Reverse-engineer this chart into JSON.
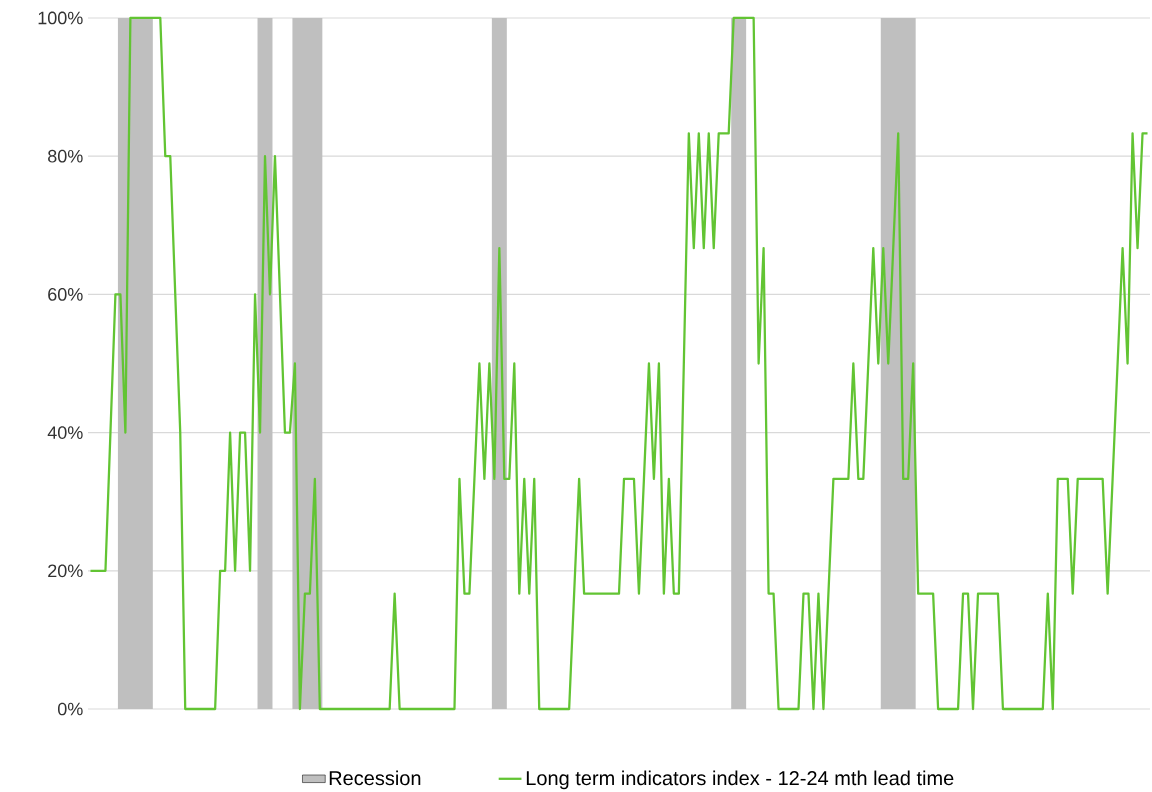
{
  "chart_data": {
    "type": "line",
    "categories": [
      null,
      null,
      null,
      null,
      null,
      null,
      null,
      null,
      null,
      null,
      null,
      null,
      null,
      null,
      null,
      null,
      null,
      null,
      null,
      null,
      null,
      null,
      null,
      null,
      null,
      null,
      null,
      null,
      null,
      null,
      null,
      null,
      null,
      null,
      null,
      null,
      null,
      null,
      null,
      null,
      null,
      null,
      null,
      null,
      null,
      null,
      null,
      null,
      null,
      null,
      null,
      null,
      null,
      null,
      null,
      null,
      null,
      null,
      null,
      null,
      null,
      null,
      null,
      null,
      null,
      null,
      null,
      null,
      null,
      null,
      null,
      null,
      null,
      null,
      null,
      null,
      null,
      null,
      null,
      null,
      null,
      null,
      null,
      null,
      null,
      null,
      null,
      null,
      null,
      null,
      null,
      null,
      null,
      null,
      null,
      null,
      null,
      null,
      null,
      null,
      null,
      null,
      null,
      null,
      null,
      null,
      null,
      null,
      null,
      null,
      null,
      null,
      null,
      null,
      null,
      null,
      null,
      null,
      null,
      null,
      null,
      null,
      null,
      null,
      null,
      null,
      null,
      null,
      null,
      null,
      null,
      null,
      null,
      null,
      null,
      null,
      null,
      null,
      null,
      null,
      null,
      null,
      null,
      null,
      null,
      null,
      null,
      null,
      null,
      null,
      null,
      null,
      null,
      null,
      null,
      null,
      null,
      null,
      null,
      null,
      null,
      null,
      null,
      null,
      null,
      null,
      null,
      null,
      null,
      null,
      null,
      null,
      null,
      null,
      null,
      null,
      null,
      null,
      null,
      null,
      null,
      null,
      null,
      null,
      null,
      null,
      null,
      null,
      null,
      null,
      null,
      null,
      null,
      null,
      null,
      null,
      null,
      null,
      null,
      null,
      null,
      null,
      null,
      null,
      null,
      null,
      null,
      null,
      null,
      null,
      null,
      null,
      null
    ],
    "series": [
      {
        "name": "Recession",
        "type": "area",
        "color": "#bfbfbf",
        "values": [
          null,
          null,
          null,
          null,
          null,
          null,
          100,
          100,
          100,
          100,
          100,
          100,
          100,
          null,
          null,
          null,
          null,
          null,
          null,
          null,
          null,
          null,
          null,
          null,
          null,
          null,
          null,
          null,
          null,
          null,
          null,
          null,
          null,
          null,
          100,
          100,
          100,
          null,
          null,
          null,
          null,
          100,
          100,
          100,
          100,
          100,
          100,
          null,
          null,
          null,
          null,
          null,
          null,
          null,
          null,
          null,
          null,
          null,
          null,
          null,
          null,
          null,
          null,
          null,
          null,
          null,
          null,
          null,
          null,
          null,
          null,
          null,
          null,
          null,
          null,
          null,
          null,
          null,
          null,
          null,
          null,
          100,
          100,
          100,
          null,
          null,
          null,
          null,
          null,
          null,
          null,
          null,
          null,
          null,
          null,
          null,
          null,
          null,
          null,
          null,
          null,
          null,
          null,
          null,
          null,
          null,
          null,
          null,
          null,
          null,
          null,
          null,
          null,
          null,
          null,
          null,
          null,
          null,
          null,
          null,
          null,
          null,
          null,
          null,
          null,
          null,
          null,
          null,
          null,
          100,
          100,
          100,
          null,
          null,
          null,
          null,
          null,
          null,
          null,
          null,
          null,
          null,
          null,
          null,
          null,
          null,
          null,
          null,
          null,
          null,
          null,
          null,
          null,
          null,
          null,
          null,
          null,
          null,
          null,
          100,
          100,
          100,
          100,
          100,
          100,
          100,
          null,
          null,
          null,
          null,
          null,
          null,
          null,
          null,
          null,
          null,
          null,
          null,
          null,
          null,
          null,
          null,
          null,
          null,
          null,
          null,
          null,
          null,
          null,
          null,
          null,
          null,
          null,
          null,
          null,
          null,
          null,
          null,
          null,
          null,
          null,
          null,
          null,
          null,
          null,
          null,
          null,
          null,
          null,
          null,
          null,
          null,
          null
        ]
      },
      {
        "name": "Long term indicators index - 12-24 mth lead time",
        "color": "#62c433",
        "values": [
          20,
          20,
          20,
          20,
          40,
          60,
          60,
          40,
          100,
          100,
          100,
          100,
          100,
          100,
          100,
          80,
          80,
          60,
          40,
          0,
          0,
          0,
          0,
          0,
          0,
          0,
          20,
          20,
          40,
          20,
          40,
          40,
          20,
          60,
          40,
          80,
          60,
          80,
          60,
          40,
          40,
          50,
          0,
          16.7,
          16.7,
          33.3,
          0,
          0,
          0,
          0,
          0,
          0,
          0,
          0,
          0,
          0,
          0,
          0,
          0,
          0,
          0,
          16.7,
          0,
          0,
          0,
          0,
          0,
          0,
          0,
          0,
          0,
          0,
          0,
          0,
          33.3,
          16.7,
          16.7,
          33.3,
          50,
          33.3,
          50,
          33.3,
          66.7,
          33.3,
          33.3,
          50,
          16.7,
          33.3,
          16.7,
          33.3,
          0,
          0,
          0,
          0,
          0,
          0,
          0,
          16.7,
          33.3,
          16.7,
          16.7,
          16.7,
          16.7,
          16.7,
          16.7,
          16.7,
          16.7,
          33.3,
          33.3,
          33.3,
          16.7,
          33.3,
          50,
          33.3,
          50,
          16.7,
          33.3,
          16.7,
          16.7,
          50,
          83.3,
          66.7,
          83.3,
          66.7,
          83.3,
          66.7,
          83.3,
          83.3,
          83.3,
          100,
          100,
          100,
          100,
          100,
          50,
          66.7,
          16.7,
          16.7,
          0,
          0,
          0,
          0,
          0,
          16.7,
          16.7,
          0,
          16.7,
          0,
          16.7,
          33.3,
          33.3,
          33.3,
          33.3,
          50,
          33.3,
          33.3,
          50,
          66.7,
          50,
          66.7,
          50,
          66.7,
          83.3,
          33.3,
          33.3,
          50,
          16.7,
          16.7,
          16.7,
          16.7,
          0,
          0,
          0,
          0,
          0,
          16.7,
          16.7,
          0,
          16.7,
          16.7,
          16.7,
          16.7,
          16.7,
          0,
          0,
          0,
          0,
          0,
          0,
          0,
          0,
          0,
          16.7,
          0,
          33.3,
          33.3,
          33.3,
          16.7,
          33.3,
          33.3,
          33.3,
          33.3,
          33.3,
          33.3,
          16.7,
          33.3,
          50,
          66.7,
          50,
          83.3,
          66.7,
          83.3,
          83.3
        ]
      }
    ],
    "ylim": [
      0,
      100
    ],
    "yticks": [
      {
        "value": 0,
        "label": "0%"
      },
      {
        "value": 20,
        "label": "20%"
      },
      {
        "value": 40,
        "label": "40%"
      },
      {
        "value": 60,
        "label": "60%"
      },
      {
        "value": 80,
        "label": "80%"
      },
      {
        "value": 100,
        "label": "100%"
      }
    ],
    "grid": "y",
    "legend": "bottom",
    "tick_labels": "y",
    "marker": "none",
    "line_style": "solid"
  }
}
